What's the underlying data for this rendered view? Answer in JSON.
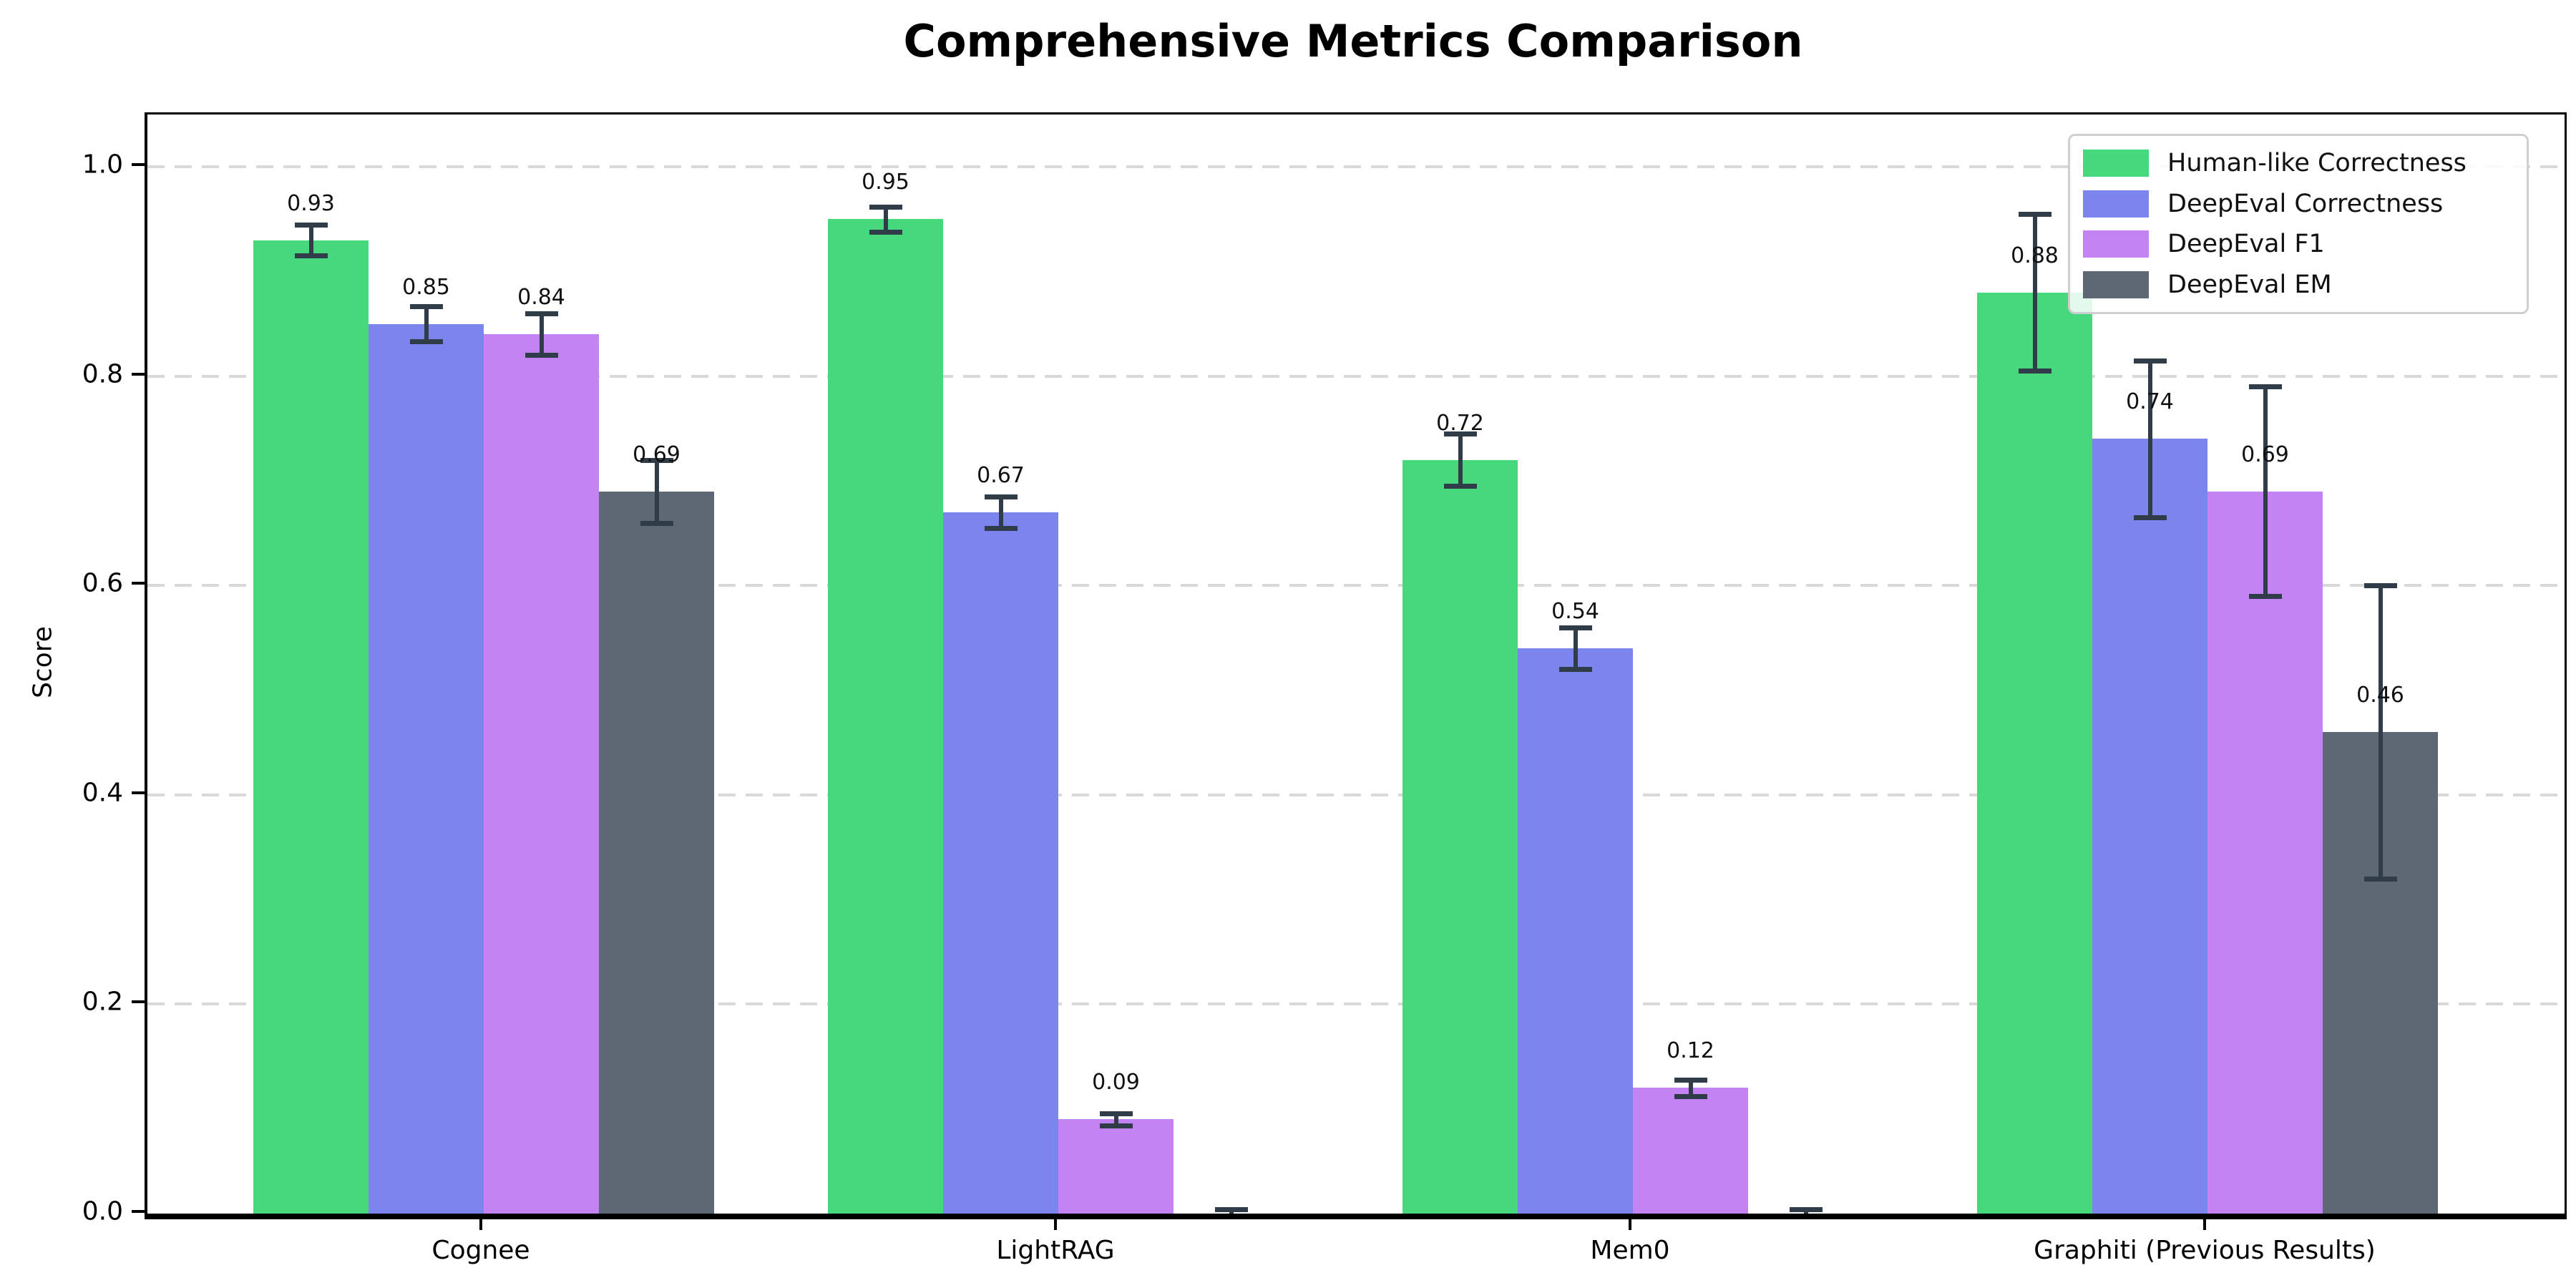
{
  "title": "Comprehensive Metrics Comparison",
  "chart_data": {
    "type": "bar",
    "title": "Comprehensive Metrics Comparison",
    "xlabel": "",
    "ylabel": "Score",
    "ylim": [
      0,
      1.05
    ],
    "yticks": [
      "0.0",
      "0.2",
      "0.4",
      "0.6",
      "0.8",
      "1.0"
    ],
    "grid": "horizontal dashed",
    "legend_position": "upper right",
    "categories": [
      "Cognee",
      "LightRAG",
      "Mem0",
      "Graphiti (Previous Results)"
    ],
    "series": [
      {
        "name": "Human-like Correctness",
        "color": "#47d87e",
        "values": [
          0.93,
          0.95,
          0.72,
          0.88
        ],
        "errors": [
          0.015,
          0.012,
          0.025,
          0.075
        ],
        "labels": [
          "0.93",
          "0.95",
          "0.72",
          "0.88"
        ]
      },
      {
        "name": "DeepEval Correctness",
        "color": "#7c85ee",
        "values": [
          0.85,
          0.67,
          0.54,
          0.74
        ],
        "errors": [
          0.017,
          0.015,
          0.02,
          0.075
        ],
        "labels": [
          "0.85",
          "0.67",
          "0.54",
          "0.74"
        ]
      },
      {
        "name": "DeepEval F1",
        "color": "#c383f2",
        "values": [
          0.84,
          0.09,
          0.12,
          0.69
        ],
        "errors": [
          0.02,
          0.006,
          0.008,
          0.1
        ],
        "labels": [
          "0.84",
          "0.09",
          "0.12",
          "0.69"
        ]
      },
      {
        "name": "DeepEval EM",
        "color": "#5e6774",
        "values": [
          0.69,
          0.0,
          0.0,
          0.46
        ],
        "errors": [
          0.03,
          0.004,
          0.004,
          0.14
        ],
        "labels": [
          "0.69",
          "",
          "",
          "0.46"
        ]
      }
    ]
  },
  "colors": {
    "errorbar": "#313c49",
    "gridline": "#d9d9d9",
    "spine": "#000000",
    "legend_border": "#cfcfcf"
  }
}
